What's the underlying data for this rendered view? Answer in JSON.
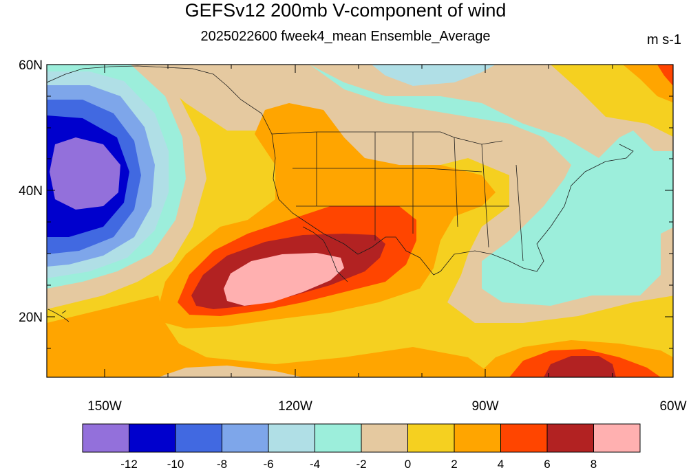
{
  "header": {
    "title": "GEFSv12 200mb V-component of wind",
    "subtitle": "2025022600 fweek4_mean Ensemble_Average",
    "units": "m s-1"
  },
  "axes": {
    "lat_labels": [
      "60N",
      "40N",
      "20N"
    ],
    "lon_labels": [
      "150W",
      "120W",
      "90W",
      "60W"
    ]
  },
  "colorbar": {
    "colors": [
      "#9370db",
      "#0000cd",
      "#4169e1",
      "#7ea6ea",
      "#b0dfe6",
      "#9ceedb",
      "#e5c9a0",
      "#f5d020",
      "#ffa500",
      "#ff4500",
      "#b22222",
      "#ffb0b0"
    ],
    "labels": [
      "-12",
      "-10",
      "-8",
      "-6",
      "-4",
      "-2",
      "0",
      "2",
      "4",
      "6",
      "8"
    ]
  }
}
